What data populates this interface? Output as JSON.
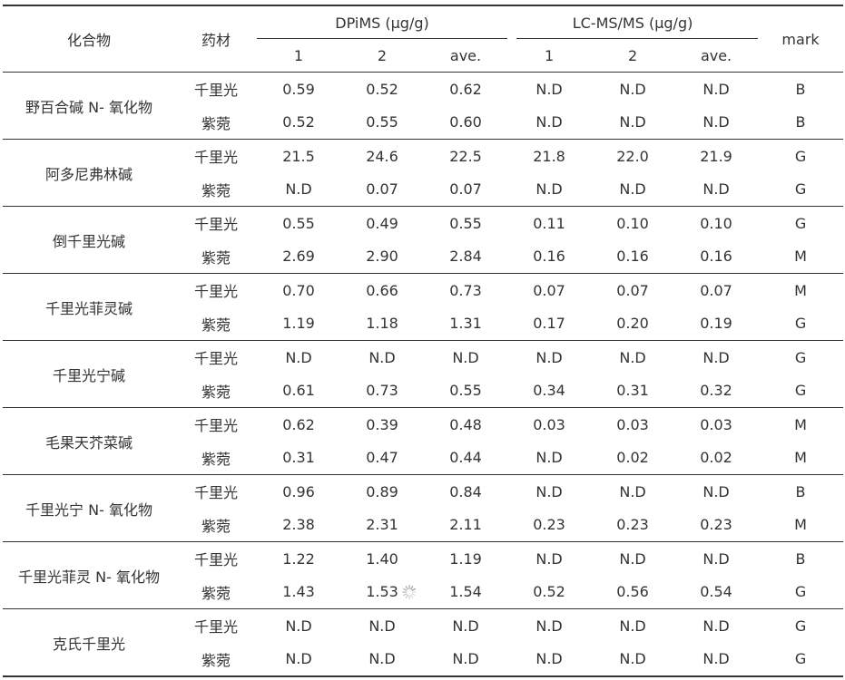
{
  "headers": {
    "compound": "化合物",
    "herb": "药材",
    "dpims": "DPiMS (µg/g)",
    "lcms": "LC-MS/MS (µg/g)",
    "mark": "mark",
    "sub": [
      "1",
      "2",
      "ave.",
      "1",
      "2",
      "ave."
    ]
  },
  "rows": [
    {
      "name": "野百合碱 N- 氧化物",
      "items": [
        {
          "herb": "千里光",
          "v": [
            "0.59",
            "0.52",
            "0.62",
            "N.D",
            "N.D",
            "N.D"
          ],
          "mark": "B"
        },
        {
          "herb": "紫菀",
          "v": [
            "0.52",
            "0.55",
            "0.60",
            "N.D",
            "N.D",
            "N.D"
          ],
          "mark": "B"
        }
      ]
    },
    {
      "name": "阿多尼弗林碱",
      "items": [
        {
          "herb": "千里光",
          "v": [
            "21.5",
            "24.6",
            "22.5",
            "21.8",
            "22.0",
            "21.9"
          ],
          "mark": "G"
        },
        {
          "herb": "紫菀",
          "v": [
            "N.D",
            "0.07",
            "0.07",
            "N.D",
            "N.D",
            "N.D"
          ],
          "mark": "G"
        }
      ]
    },
    {
      "name": "倒千里光碱",
      "items": [
        {
          "herb": "千里光",
          "v": [
            "0.55",
            "0.49",
            "0.55",
            "0.11",
            "0.10",
            "0.10"
          ],
          "mark": "G"
        },
        {
          "herb": "紫菀",
          "v": [
            "2.69",
            "2.90",
            "2.84",
            "0.16",
            "0.16",
            "0.16"
          ],
          "mark": "M"
        }
      ]
    },
    {
      "name": "千里光菲灵碱",
      "items": [
        {
          "herb": "千里光",
          "v": [
            "0.70",
            "0.66",
            "0.73",
            "0.07",
            "0.07",
            "0.07"
          ],
          "mark": "M"
        },
        {
          "herb": "紫菀",
          "v": [
            "1.19",
            "1.18",
            "1.31",
            "0.17",
            "0.20",
            "0.19"
          ],
          "mark": "G"
        }
      ]
    },
    {
      "name": "千里光宁碱",
      "items": [
        {
          "herb": "千里光",
          "v": [
            "N.D",
            "N.D",
            "N.D",
            "N.D",
            "N.D",
            "N.D"
          ],
          "mark": "G"
        },
        {
          "herb": "紫菀",
          "v": [
            "0.61",
            "0.73",
            "0.55",
            "0.34",
            "0.31",
            "0.32"
          ],
          "mark": "G"
        }
      ]
    },
    {
      "name": "毛果天芥菜碱",
      "items": [
        {
          "herb": "千里光",
          "v": [
            "0.62",
            "0.39",
            "0.48",
            "0.03",
            "0.03",
            "0.03"
          ],
          "mark": "M"
        },
        {
          "herb": "紫菀",
          "v": [
            "0.31",
            "0.47",
            "0.44",
            "N.D",
            "0.02",
            "0.02"
          ],
          "mark": "M"
        }
      ]
    },
    {
      "name": "千里光宁 N- 氧化物",
      "items": [
        {
          "herb": "千里光",
          "v": [
            "0.96",
            "0.89",
            "0.84",
            "N.D",
            "N.D",
            "N.D"
          ],
          "mark": "B"
        },
        {
          "herb": "紫菀",
          "v": [
            "2.38",
            "2.31",
            "2.11",
            "0.23",
            "0.23",
            "0.23"
          ],
          "mark": "M"
        }
      ]
    },
    {
      "name": "千里光菲灵 N- 氧化物",
      "items": [
        {
          "herb": "千里光",
          "v": [
            "1.22",
            "1.40",
            "1.19",
            "N.D",
            "N.D",
            "N.D"
          ],
          "mark": "B"
        },
        {
          "herb": "紫菀",
          "v": [
            "1.43",
            "1.53",
            "1.54",
            "0.52",
            "0.56",
            "0.54"
          ],
          "mark": "G"
        }
      ]
    },
    {
      "name": "克氏千里光",
      "items": [
        {
          "herb": "千里光",
          "v": [
            "N.D",
            "N.D",
            "N.D",
            "N.D",
            "N.D",
            "N.D"
          ],
          "mark": "G"
        },
        {
          "herb": "紫菀",
          "v": [
            "N.D",
            "N.D",
            "N.D",
            "N.D",
            "N.D",
            "N.D"
          ],
          "mark": "G"
        }
      ]
    }
  ],
  "overlay": {
    "icon": "loading-spinner-icon",
    "row": 7,
    "item": 1,
    "col": 1
  }
}
